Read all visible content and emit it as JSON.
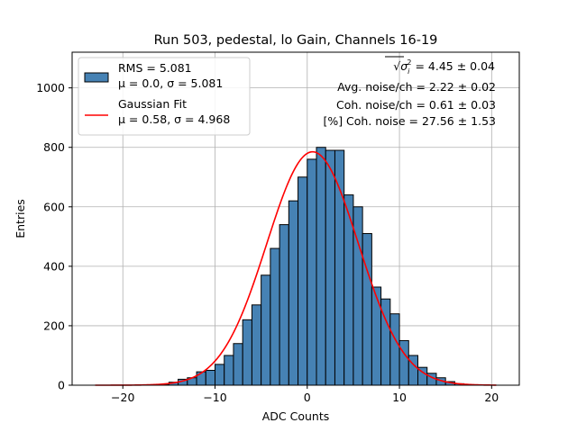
{
  "chart_data": {
    "type": "bar",
    "title": "Run 503, pedestal, lo Gain, Channels 16-19",
    "xlabel": "ADC Counts",
    "ylabel": "Entries",
    "xlim": [
      -25.5,
      23
    ],
    "ylim": [
      0,
      1120
    ],
    "xticks": [
      -20,
      -10,
      0,
      10,
      20
    ],
    "yticks": [
      0,
      200,
      400,
      600,
      800,
      1000
    ],
    "grid": true,
    "bin_width": 1,
    "histogram": {
      "name": "RMS = 5.081",
      "label_line2": "μ = 0.0, σ = 5.081",
      "color": "#4682b4",
      "edgecolor": "#000000",
      "bins_left_edges": [
        -16,
        -15,
        -14,
        -13,
        -12,
        -11,
        -10,
        -9,
        -8,
        -7,
        -6,
        -5,
        -4,
        -3,
        -2,
        -1,
        0,
        1,
        2,
        3,
        4,
        5,
        6,
        7,
        8,
        9,
        10,
        11,
        12,
        13,
        14,
        15,
        16
      ],
      "counts": [
        3,
        10,
        20,
        25,
        45,
        50,
        70,
        100,
        140,
        220,
        270,
        370,
        460,
        540,
        620,
        700,
        760,
        800,
        790,
        790,
        640,
        600,
        510,
        330,
        290,
        240,
        150,
        100,
        60,
        40,
        25,
        12,
        5
      ]
    },
    "fit": {
      "name": "Gaussian Fit",
      "label_line2": "μ = 0.58, σ = 4.968",
      "color": "#ff0000",
      "mu": 0.58,
      "sigma": 4.968,
      "amplitude": 785,
      "x_range": [
        -23,
        20.5
      ]
    },
    "legend_placement": "upper-left",
    "annotations": [
      {
        "type": "sqrt",
        "base": "σ",
        "sup": "2",
        "sub": "i",
        "value": " = 4.45 ± 0.04"
      },
      {
        "text": "Avg. noise/ch = 2.22 ± 0.02"
      },
      {
        "text": "Coh. noise/ch = 0.61 ± 0.03"
      },
      {
        "text": "[%] Coh. noise = 27.56 ± 1.53"
      }
    ]
  }
}
